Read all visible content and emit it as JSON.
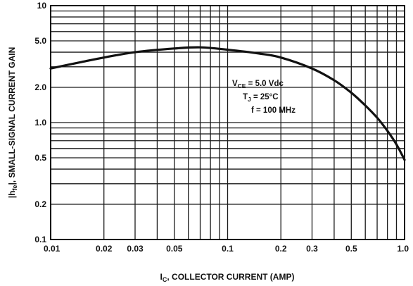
{
  "chart_data": {
    "type": "line",
    "x_scale": "log",
    "y_scale": "log",
    "xlim": [
      0.01,
      1.0
    ],
    "ylim": [
      0.1,
      10
    ],
    "grid": true,
    "xlabel": {
      "main": "I",
      "sub": "C",
      "rest": ", COLLECTOR CURRENT (AMP)"
    },
    "ylabel": {
      "main": "|h",
      "sub": "fe",
      "rest": "|, SMALL-SIGNAL CURRENT GAIN"
    },
    "x_ticks": [
      {
        "v": 0.01,
        "label": "0.01"
      },
      {
        "v": 0.02,
        "label": "0.02"
      },
      {
        "v": 0.03,
        "label": "0.03"
      },
      {
        "v": 0.05,
        "label": "0.05"
      },
      {
        "v": 0.1,
        "label": "0.1"
      },
      {
        "v": 0.2,
        "label": "0.2"
      },
      {
        "v": 0.3,
        "label": "0.3"
      },
      {
        "v": 0.5,
        "label": "0.5"
      },
      {
        "v": 1.0,
        "label": "1.0"
      }
    ],
    "y_ticks": [
      {
        "v": 10,
        "label": "10"
      },
      {
        "v": 5,
        "label": "5.0"
      },
      {
        "v": 2,
        "label": "2.0"
      },
      {
        "v": 1,
        "label": "1.0"
      },
      {
        "v": 0.5,
        "label": "0.5"
      },
      {
        "v": 0.2,
        "label": "0.2"
      },
      {
        "v": 0.1,
        "label": "0.1"
      }
    ],
    "annotations": {
      "vce": {
        "main": "V",
        "sub": "CE",
        "rest": " = 5.0 Vdc"
      },
      "tj": {
        "main": "T",
        "sub": "J",
        "rest": " = 25°C"
      },
      "freq": {
        "text": "f = 100 MHz"
      }
    },
    "series": [
      {
        "x": [
          0.01,
          0.015,
          0.02,
          0.03,
          0.05,
          0.07,
          0.1,
          0.15,
          0.2,
          0.3,
          0.4,
          0.5,
          0.6,
          0.7,
          0.8,
          0.9,
          1.0
        ],
        "y": [
          2.9,
          3.3,
          3.6,
          4.0,
          4.3,
          4.4,
          4.2,
          3.9,
          3.6,
          2.9,
          2.3,
          1.8,
          1.4,
          1.1,
          0.85,
          0.65,
          0.48
        ]
      }
    ]
  }
}
